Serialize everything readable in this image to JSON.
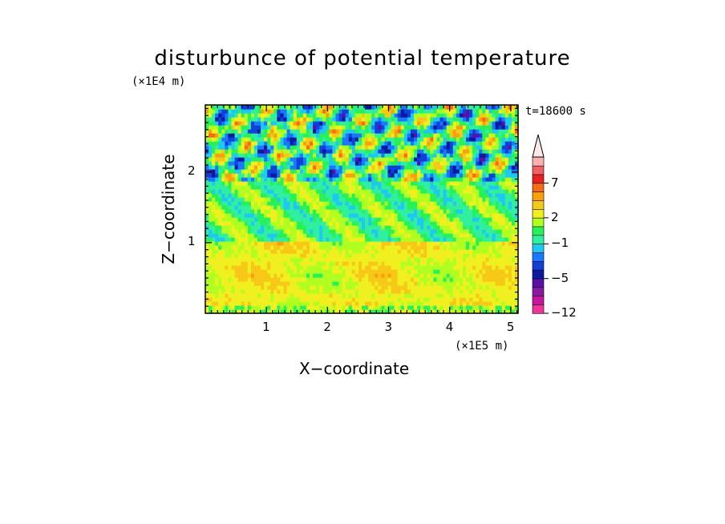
{
  "chart_data": {
    "type": "heatmap",
    "title": "disturbunce of potential temperature",
    "xlabel": "X−coordinate",
    "ylabel": "Z−coordinate",
    "x_unit": "(×1E5 m)",
    "z_unit": "(×1E4 m)",
    "time_label": "t=18600 s",
    "xlim": [
      0,
      5.12
    ],
    "ylim": [
      0,
      2.95
    ],
    "x_ticks": [
      1,
      2,
      3,
      4,
      5
    ],
    "y_ticks": [
      1,
      2
    ],
    "colorbar": {
      "levels": [
        -12,
        -10,
        -8,
        -6,
        -5,
        -4,
        -3,
        -2,
        -1,
        0,
        1,
        2,
        3,
        4,
        5,
        7,
        9,
        11,
        13
      ],
      "labeled_levels": [
        "−12",
        "−5",
        "−1",
        "2",
        "7"
      ],
      "colors": [
        "#f0329a",
        "#c3189b",
        "#8a1aa4",
        "#5a10a8",
        "#0a1aa0",
        "#1040d8",
        "#1a78ff",
        "#1ec8f0",
        "#30f0a0",
        "#28f058",
        "#b0ff20",
        "#f0f020",
        "#f8c818",
        "#f8a010",
        "#f86a10",
        "#e82020",
        "#f06060",
        "#f8b0b0"
      ],
      "extend": "max"
    },
    "grid": false
  }
}
